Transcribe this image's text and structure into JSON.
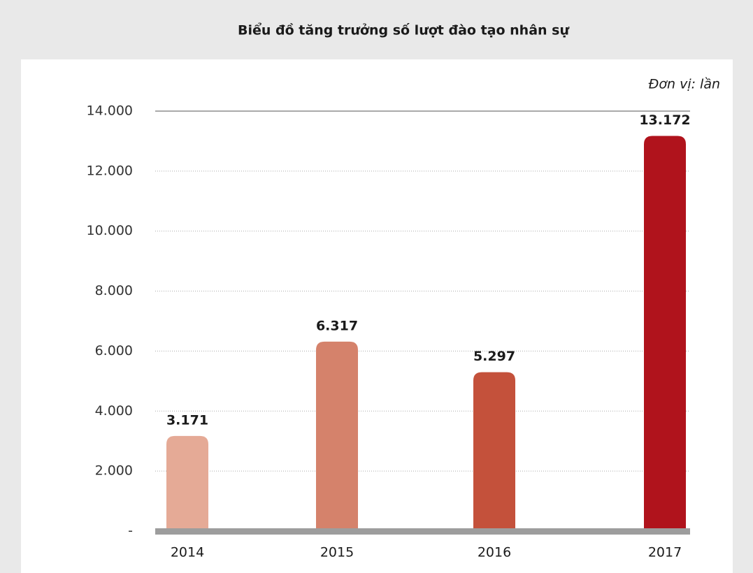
{
  "chart_data": {
    "type": "bar",
    "title": "Biểu đồ tăng trưởng số lượt đào tạo nhân sự",
    "unit_label": "Đơn vị: lần",
    "categories": [
      "2014",
      "2015",
      "2016",
      "2017"
    ],
    "values": [
      3171,
      6317,
      5297,
      13172
    ],
    "value_labels": [
      "3.171",
      "6.317",
      "5.297",
      "13.172"
    ],
    "colors": [
      "#e5aa96",
      "#d5826b",
      "#c4513b",
      "#b0131c"
    ],
    "ylim": [
      0,
      14000
    ],
    "yticks": [
      {
        "value": 0,
        "label": "-"
      },
      {
        "value": 2000,
        "label": "2.000"
      },
      {
        "value": 4000,
        "label": "4.000"
      },
      {
        "value": 6000,
        "label": "6.000"
      },
      {
        "value": 8000,
        "label": "8.000"
      },
      {
        "value": 10000,
        "label": "10.000"
      },
      {
        "value": 12000,
        "label": "12.000"
      },
      {
        "value": 14000,
        "label": "14.000"
      }
    ],
    "grid": true
  }
}
